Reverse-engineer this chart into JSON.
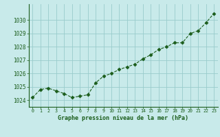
{
  "x": [
    0,
    1,
    2,
    3,
    4,
    5,
    6,
    7,
    8,
    9,
    10,
    11,
    12,
    13,
    14,
    15,
    16,
    17,
    18,
    19,
    20,
    21,
    22,
    23
  ],
  "y": [
    1024.2,
    1024.8,
    1024.9,
    1024.7,
    1024.5,
    1024.2,
    1024.3,
    1024.4,
    1025.3,
    1025.8,
    1026.0,
    1026.3,
    1026.5,
    1026.7,
    1027.1,
    1027.4,
    1027.8,
    1028.0,
    1028.3,
    1028.3,
    1029.0,
    1029.2,
    1029.8,
    1030.5
  ],
  "line_color": "#1a5c1a",
  "marker": "D",
  "marker_size": 2.5,
  "bg_color": "#c8eaea",
  "plot_bg_color": "#c8eaea",
  "grid_color": "#99cccc",
  "title": "Graphe pression niveau de la mer (hPa)",
  "title_color": "#1a5c1a",
  "ylim_min": 1023.5,
  "ylim_max": 1031.2,
  "yticks": [
    1024,
    1025,
    1026,
    1027,
    1028,
    1029,
    1030
  ],
  "xtick_labels": [
    "0",
    "1",
    "2",
    "3",
    "4",
    "5",
    "6",
    "7",
    "8",
    "9",
    "10",
    "11",
    "12",
    "13",
    "14",
    "15",
    "16",
    "17",
    "18",
    "19",
    "20",
    "21",
    "22",
    "23"
  ]
}
